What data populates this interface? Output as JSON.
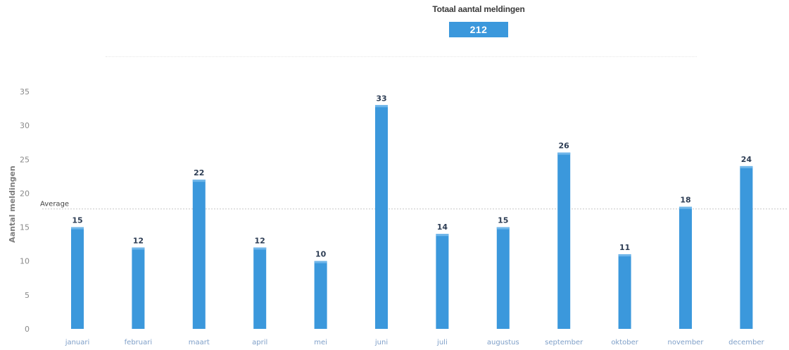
{
  "header": {
    "total_title": "Totaal aantal meldingen",
    "total_value": "212"
  },
  "chart_data": {
    "type": "bar",
    "categories": [
      "januari",
      "februari",
      "maart",
      "april",
      "mei",
      "juni",
      "juli",
      "augustus",
      "september",
      "oktober",
      "november",
      "december"
    ],
    "values": [
      15,
      12,
      22,
      12,
      10,
      33,
      14,
      15,
      26,
      11,
      18,
      24
    ],
    "ylabel": "Aantal meldingen",
    "xlabel": "",
    "ylim": [
      0,
      35
    ],
    "yticks": [
      0,
      5,
      10,
      15,
      20,
      25,
      30,
      35
    ],
    "grid": false,
    "data_labels": true,
    "reference_line": {
      "label": "Average",
      "value": 17.7
    },
    "bar_color": "#3b98dc"
  }
}
